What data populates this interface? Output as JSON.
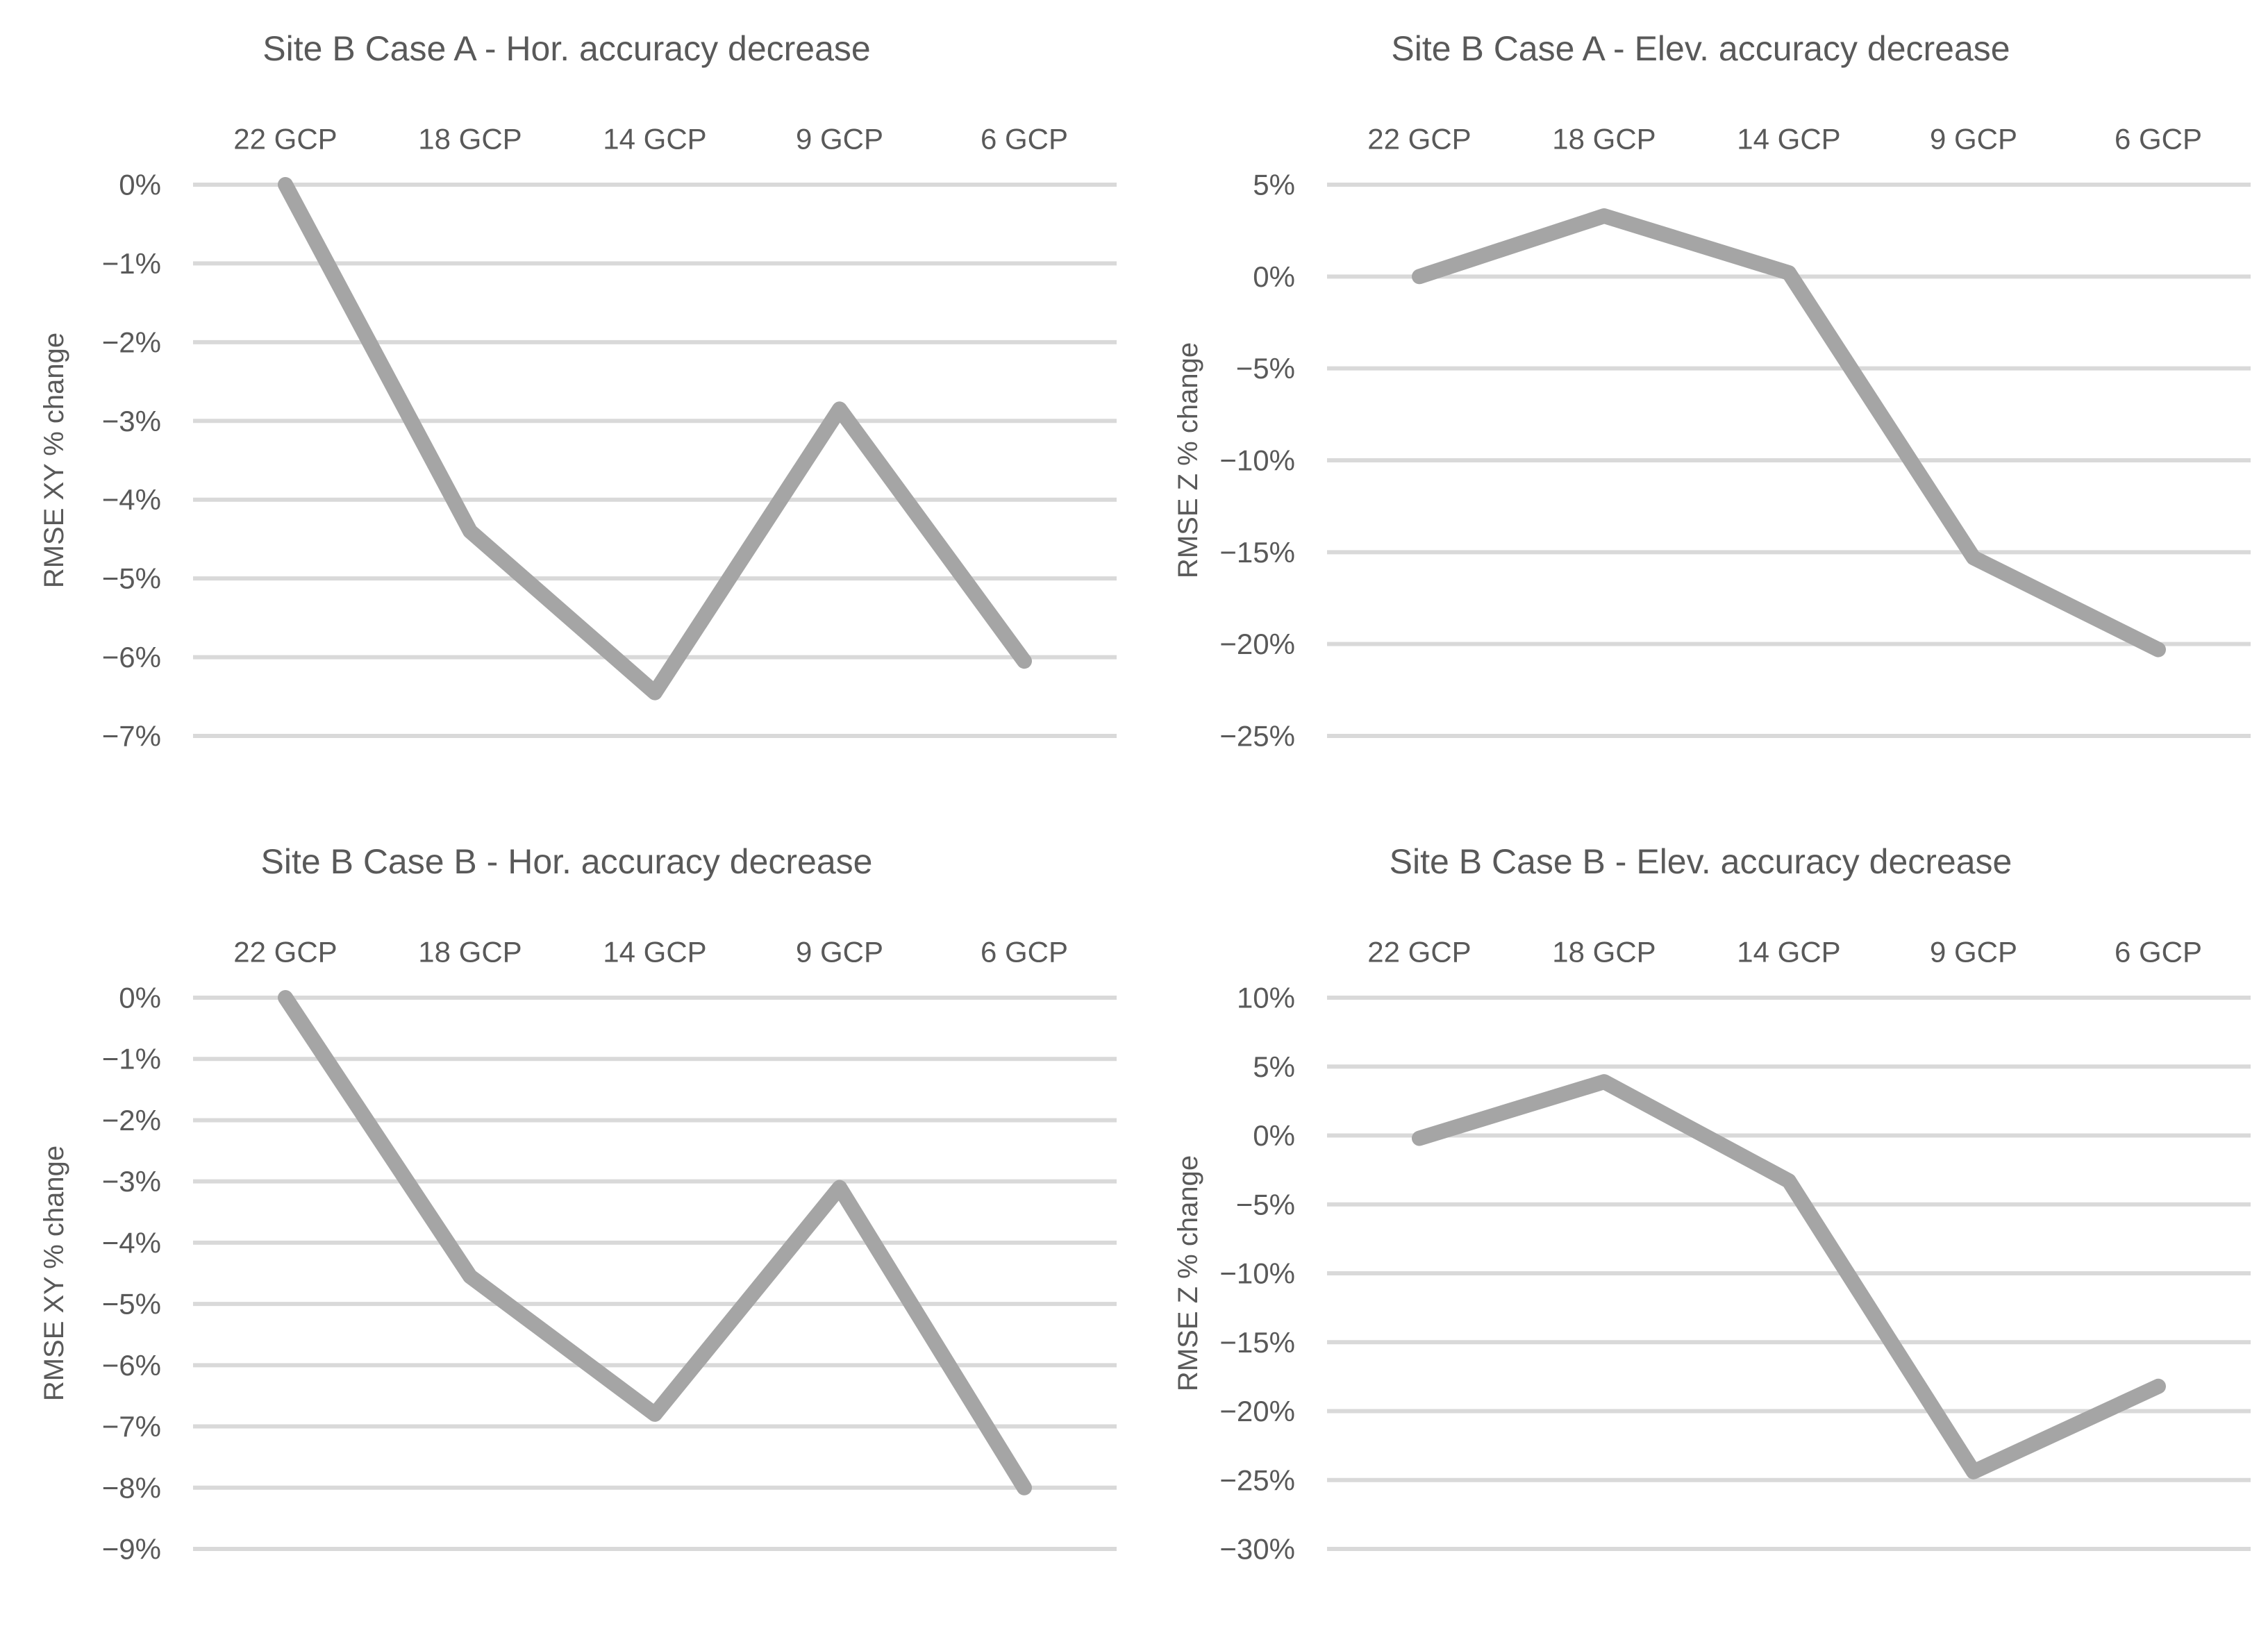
{
  "page": {
    "background": "#ffffff"
  },
  "colors": {
    "text": "#595959",
    "gridline": "#d9d9d9",
    "series_line": "#a5a5a5"
  },
  "chart_data": [
    {
      "type": "line",
      "title": "Site B Case A - Hor. accuracy decrease",
      "ylabel": "RMSE XY % change",
      "xlabel": "",
      "categories": [
        "22 GCP",
        "18 GCP",
        "14 GCP",
        "9 GCP",
        "6 GCP"
      ],
      "values": [
        0,
        -4.4,
        -6.45,
        -2.85,
        -6.05
      ],
      "ytick_labels": [
        "0%",
        "−1%",
        "−2%",
        "−3%",
        "−4%",
        "−5%",
        "−6%",
        "−7%"
      ],
      "ytick_values": [
        0,
        -1,
        -2,
        -3,
        -4,
        -5,
        -6,
        -7
      ],
      "ylim": [
        0,
        -7
      ],
      "x_axis_position": "top",
      "grid": true,
      "legend": "none"
    },
    {
      "type": "line",
      "title": "Site B Case A - Elev. accuracy decrease",
      "ylabel": "RMSE Z % change",
      "xlabel": "",
      "categories": [
        "22 GCP",
        "18 GCP",
        "14 GCP",
        "9 GCP",
        "6 GCP"
      ],
      "values": [
        0,
        3.3,
        0.2,
        -15.3,
        -20.3
      ],
      "ytick_labels": [
        "5%",
        "0%",
        "−5%",
        "−10%",
        "−15%",
        "−20%",
        "−25%"
      ],
      "ytick_values": [
        5,
        0,
        -5,
        -10,
        -15,
        -20,
        -25
      ],
      "ylim": [
        5,
        -25
      ],
      "x_axis_position": "top",
      "grid": true,
      "legend": "none"
    },
    {
      "type": "line",
      "title": "Site B Case B - Hor. accuracy decrease",
      "ylabel": "RMSE XY % change",
      "xlabel": "",
      "categories": [
        "22 GCP",
        "18 GCP",
        "14 GCP",
        "9 GCP",
        "6 GCP"
      ],
      "values": [
        0,
        -4.55,
        -6.8,
        -3.1,
        -8.0
      ],
      "ytick_labels": [
        "0%",
        "−1%",
        "−2%",
        "−3%",
        "−4%",
        "−5%",
        "−6%",
        "−7%",
        "−8%",
        "−9%"
      ],
      "ytick_values": [
        0,
        -1,
        -2,
        -3,
        -4,
        -5,
        -6,
        -7,
        -8,
        -9
      ],
      "ylim": [
        0,
        -9
      ],
      "x_axis_position": "top",
      "grid": true,
      "legend": "none"
    },
    {
      "type": "line",
      "title": "Site B Case B - Elev. accuracy decrease",
      "ylabel": "RMSE Z % change",
      "xlabel": "",
      "categories": [
        "22 GCP",
        "18 GCP",
        "14 GCP",
        "9 GCP",
        "6 GCP"
      ],
      "values": [
        -0.2,
        3.9,
        -3.3,
        -24.4,
        -18.2
      ],
      "ytick_labels": [
        "10%",
        "5%",
        "0%",
        "−5%",
        "−10%",
        "−15%",
        "−20%",
        "−25%",
        "−30%"
      ],
      "ytick_values": [
        10,
        5,
        0,
        -5,
        -10,
        -15,
        -20,
        -25,
        -30
      ],
      "ylim": [
        10,
        -30
      ],
      "x_axis_position": "top",
      "grid": true,
      "legend": "none"
    }
  ]
}
